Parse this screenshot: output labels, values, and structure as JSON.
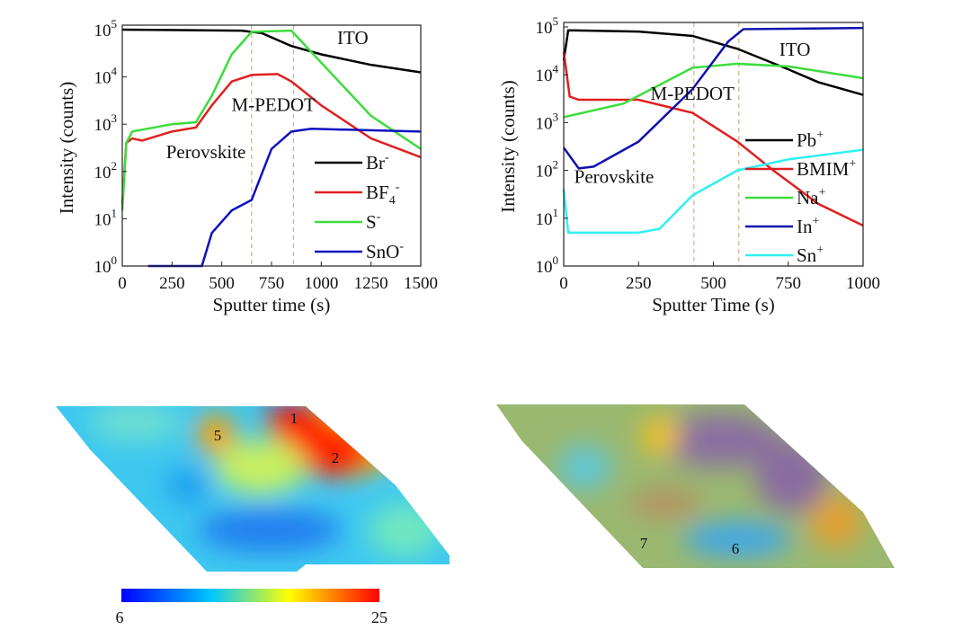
{
  "chart_data": [
    {
      "type": "line",
      "xlabel": "Sputter time (s)",
      "ylabel": "Intensity (counts)",
      "xlim": [
        0,
        1500
      ],
      "ylim": [
        1,
        100000
      ],
      "yscale": "log",
      "xticks": [
        "0",
        "250",
        "500",
        "750",
        "1000",
        "1250",
        "1500"
      ],
      "xtick_values": [
        0,
        250,
        500,
        750,
        1000,
        1250,
        1500
      ],
      "yticks": [
        "10",
        "10",
        "10",
        "10",
        "10",
        "10"
      ],
      "ytick_exp": [
        "0",
        "1",
        "2",
        "3",
        "4",
        "5"
      ],
      "legend_placement": "bottom-right",
      "vlines": [
        650,
        860
      ],
      "annotations": [
        {
          "text": "ITO",
          "x": 1080,
          "y": 50000
        },
        {
          "text": "M-PEDOT",
          "x": 760,
          "y": 1900,
          "color": "#d8b860"
        },
        {
          "text": "Perovskite",
          "x": 220,
          "y": 190
        }
      ],
      "series": [
        {
          "name": "Br",
          "sup": "-",
          "color": "#000000",
          "points": [
            [
              0,
              100000
            ],
            [
              300,
              98000
            ],
            [
              600,
              95000
            ],
            [
              700,
              85000
            ],
            [
              850,
              45000
            ],
            [
              1000,
              30000
            ],
            [
              1250,
              18000
            ],
            [
              1500,
              12500
            ]
          ]
        },
        {
          "name": "BF",
          "sub": "4",
          "sup": "-",
          "color": "#e02020",
          "points": [
            [
              0,
              20
            ],
            [
              20,
              400
            ],
            [
              50,
              500
            ],
            [
              100,
              450
            ],
            [
              250,
              700
            ],
            [
              370,
              850
            ],
            [
              450,
              2500
            ],
            [
              550,
              8000
            ],
            [
              650,
              11000
            ],
            [
              780,
              11500
            ],
            [
              850,
              8000
            ],
            [
              1000,
              2500
            ],
            [
              1250,
              500
            ],
            [
              1500,
              200
            ]
          ]
        },
        {
          "name": "S",
          "sup": "-",
          "color": "#3cdc3c",
          "points": [
            [
              0,
              15
            ],
            [
              20,
              400
            ],
            [
              50,
              700
            ],
            [
              250,
              1000
            ],
            [
              370,
              1100
            ],
            [
              450,
              4000
            ],
            [
              550,
              30000
            ],
            [
              650,
              90000
            ],
            [
              850,
              95000
            ],
            [
              1000,
              20000
            ],
            [
              1250,
              1500
            ],
            [
              1500,
              300
            ]
          ]
        },
        {
          "name": "SnO",
          "sup": "-",
          "color": "#1010c0",
          "points": [
            [
              130,
              1
            ],
            [
              400,
              1
            ],
            [
              450,
              5
            ],
            [
              550,
              15
            ],
            [
              650,
              25
            ],
            [
              750,
              300
            ],
            [
              850,
              700
            ],
            [
              950,
              800
            ],
            [
              1500,
              700
            ]
          ]
        }
      ]
    },
    {
      "type": "line",
      "xlabel": "Sputter Time (s)",
      "ylabel": "Intensity (counts)",
      "xlim": [
        0,
        1000
      ],
      "ylim": [
        1,
        100000
      ],
      "yscale": "log",
      "xticks": [
        "0",
        "250",
        "500",
        "750",
        "1000"
      ],
      "xtick_values": [
        0,
        250,
        500,
        750,
        1000
      ],
      "yticks": [
        "10",
        "10",
        "10",
        "10",
        "10",
        "10"
      ],
      "ytick_exp": [
        "0",
        "1",
        "2",
        "3",
        "4",
        "5"
      ],
      "legend_placement": "bottom-right",
      "vlines": [
        435,
        585
      ],
      "annotations": [
        {
          "text": "ITO",
          "x": 720,
          "y": 25000
        },
        {
          "text": "M-PEDOT",
          "x": 430,
          "y": 3000,
          "color": "#c8a070"
        },
        {
          "text": "Perovskite",
          "x": 35,
          "y": 55
        }
      ],
      "series": [
        {
          "name": "Pb",
          "sup": "+",
          "color": "#000000",
          "points": [
            [
              0,
              20000
            ],
            [
              15,
              85000
            ],
            [
              250,
              80000
            ],
            [
              430,
              65000
            ],
            [
              580,
              35000
            ],
            [
              750,
              13000
            ],
            [
              850,
              7000
            ],
            [
              1000,
              3800
            ]
          ]
        },
        {
          "name": "BMIM",
          "sup": "+",
          "color": "#e02020",
          "points": [
            [
              0,
              30000
            ],
            [
              20,
              3500
            ],
            [
              50,
              3000
            ],
            [
              250,
              3000
            ],
            [
              430,
              1600
            ],
            [
              580,
              400
            ],
            [
              700,
              100
            ],
            [
              850,
              20
            ],
            [
              1000,
              7
            ]
          ]
        },
        {
          "name": "Na",
          "sup": "+",
          "color": "#3cdc3c",
          "points": [
            [
              0,
              1300
            ],
            [
              200,
              2500
            ],
            [
              430,
              14000
            ],
            [
              580,
              17000
            ],
            [
              750,
              15000
            ],
            [
              1000,
              8500
            ]
          ]
        },
        {
          "name": "In",
          "sup": "+",
          "color": "#1010b0",
          "points": [
            [
              0,
              300
            ],
            [
              50,
              110
            ],
            [
              100,
              120
            ],
            [
              250,
              400
            ],
            [
              430,
              5000
            ],
            [
              550,
              50000
            ],
            [
              600,
              90000
            ],
            [
              1000,
              95000
            ]
          ]
        },
        {
          "name": "Sn",
          "sup": "+",
          "color": "#30f0f0",
          "points": [
            [
              0,
              40
            ],
            [
              15,
              5
            ],
            [
              250,
              5
            ],
            [
              320,
              6
            ],
            [
              430,
              30
            ],
            [
              580,
              100
            ],
            [
              750,
              170
            ],
            [
              1000,
              270
            ]
          ]
        }
      ]
    },
    {
      "type": "heatmap",
      "labels": [
        "5",
        "1",
        "2"
      ],
      "colorbar": {
        "min": "6",
        "max": "25",
        "colors": [
          "#0000ff",
          "#00c8ff",
          "#ffff00",
          "#ff0000"
        ]
      }
    },
    {
      "type": "heatmap",
      "labels": [
        "7",
        "6"
      ]
    }
  ]
}
